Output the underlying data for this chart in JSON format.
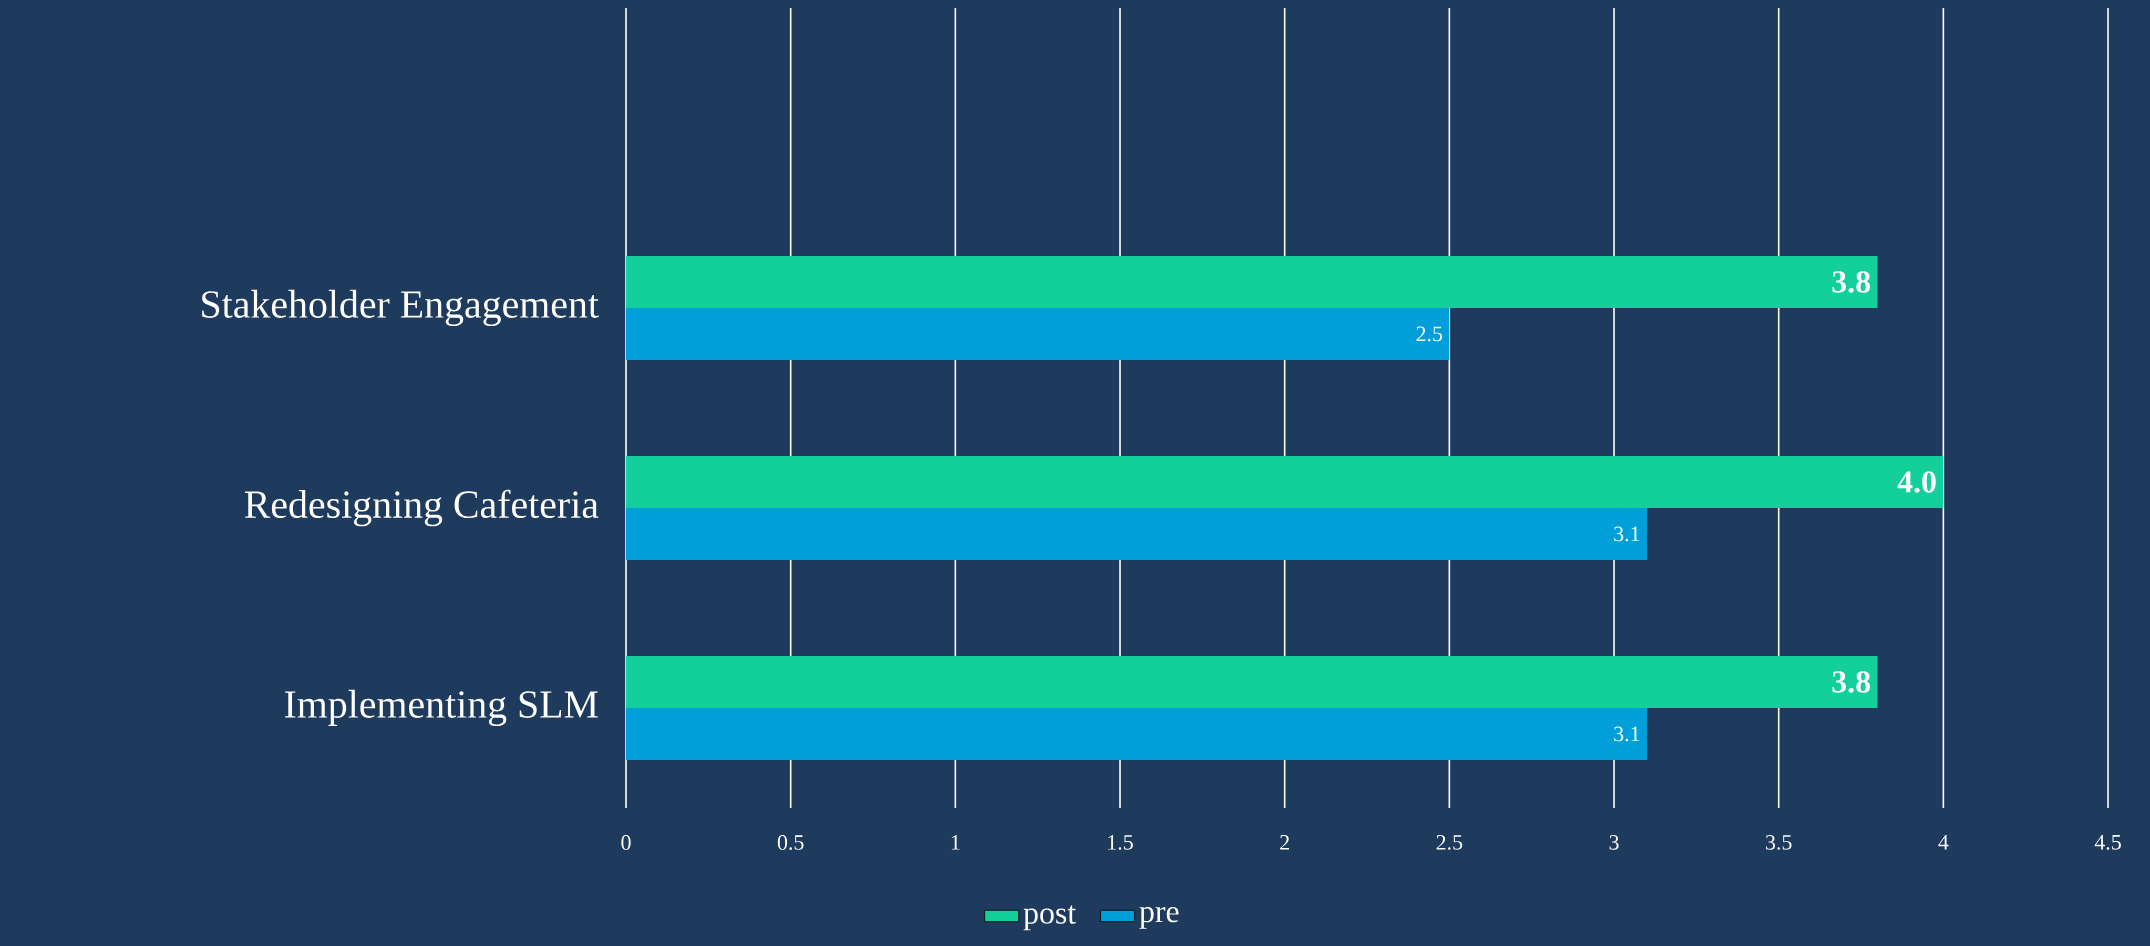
{
  "chart_data": {
    "type": "bar",
    "orientation": "horizontal",
    "categories": [
      "Stakeholder Engagement",
      "Redesigning Cafeteria",
      "Implementing SLM"
    ],
    "series": [
      {
        "name": "post",
        "color": "#12cf9c",
        "values": [
          3.8,
          4.0,
          3.8
        ],
        "value_labels": [
          "3.8",
          "4.0",
          "3.8"
        ]
      },
      {
        "name": "pre",
        "color": "#009fd9",
        "values": [
          2.5,
          3.1,
          3.1
        ],
        "value_labels": [
          "2.5",
          "3.1",
          "3.1"
        ]
      }
    ],
    "xlim": [
      0,
      4.5
    ],
    "xticks": [
      0,
      0.5,
      1,
      1.5,
      2,
      2.5,
      3,
      3.5,
      4,
      4.5
    ],
    "grid": "x",
    "legend": "bottom"
  }
}
